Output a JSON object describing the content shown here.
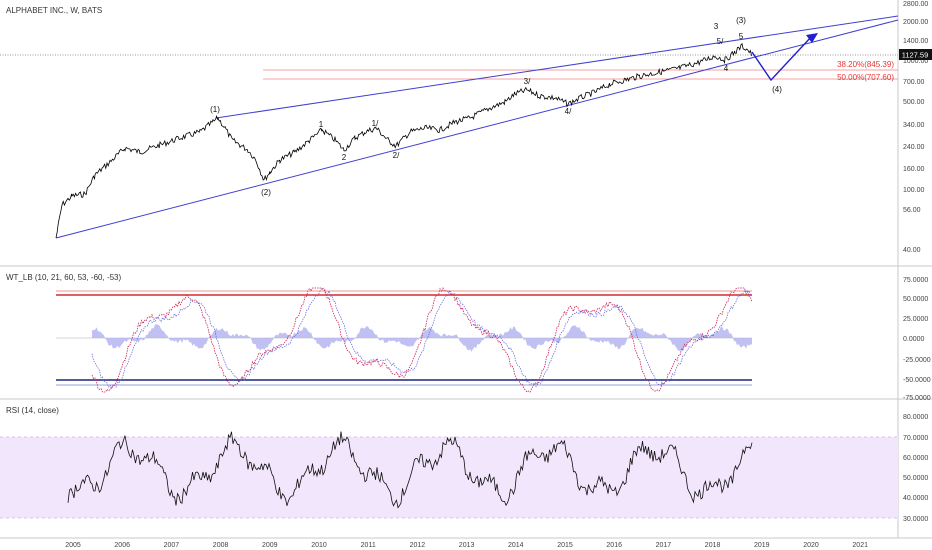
{
  "panes": {
    "price": {
      "title": "ALPHABET INC., W, BATS",
      "last_price": "1127.59",
      "y_ticks": [
        "2800.00",
        "2000.00",
        "1400.00",
        "1000.00",
        "700.00",
        "500.00",
        "340.00",
        "240.00",
        "160.00",
        "100.00",
        "56.00",
        "40.00"
      ],
      "fib_levels": [
        "38.20%(845.39)",
        "50.00%(707.60)"
      ],
      "wave_labels": [
        "(1)",
        "(2)",
        "1",
        "2",
        "1/",
        "2/",
        "3/",
        "4/",
        "3",
        "5/",
        "4",
        "(3)",
        "5",
        "(4)"
      ]
    },
    "wt": {
      "title": "WT_LB (10, 21, 60, 53, -60, -53)",
      "y_ticks": [
        "75.0000",
        "50.0000",
        "25.0000",
        "0.0000",
        "-25.0000",
        "-50.0000",
        "-75.0000"
      ]
    },
    "rsi": {
      "title": "RSI (14, close)",
      "y_ticks": [
        "80.0000",
        "70.0000",
        "60.0000",
        "50.0000",
        "40.0000",
        "30.0000"
      ]
    }
  },
  "x_ticks": [
    "2005",
    "2006",
    "2007",
    "2008",
    "2009",
    "2010",
    "2011",
    "2012",
    "2013",
    "2014",
    "2015",
    "2016",
    "2017",
    "2018",
    "2019",
    "2020",
    "2021"
  ],
  "colors": {
    "trend_line": "#3f3fd0",
    "fib_line": "#f08080",
    "wt_band": "#d32f2f",
    "wt_low_band": "#1a237e",
    "rsi_fill": "#f1e6fb",
    "rsi_border": "#d4b3f0",
    "price_line": "#000000",
    "wt_line1": "#cc2255",
    "wt_line2": "#6060e0",
    "wt_area": "#b0b0f0"
  }
}
